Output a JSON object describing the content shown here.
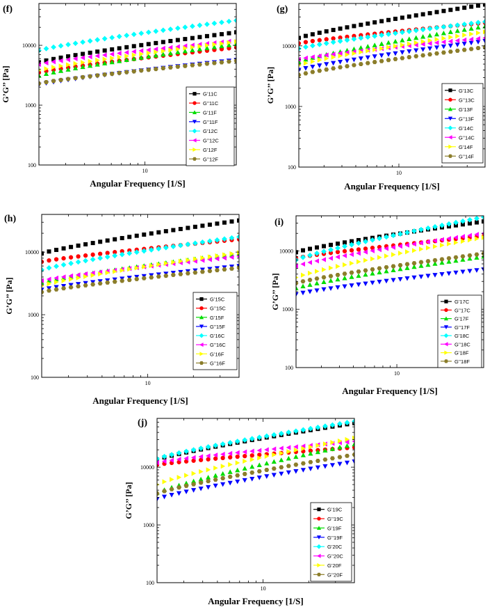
{
  "figure": {
    "panels": [
      "f",
      "g",
      "h",
      "i",
      "j"
    ]
  },
  "chart_data": [
    {
      "panel": "f",
      "label": "(f)",
      "type": "scatter",
      "xlabel": "Angular Frequency [1/S]",
      "ylabel": "G’G’’ [Pa]",
      "xscale": "log",
      "yscale": "log",
      "xlim": [
        2,
        40
      ],
      "ylim": [
        100,
        50000
      ],
      "xticks": [
        10
      ],
      "xtick_labels": [
        "10"
      ],
      "yticks": [
        100,
        1000,
        10000
      ],
      "ytick_labels": [
        "100",
        "1000",
        "10000"
      ],
      "legend_position": "bottom-right",
      "series": [
        {
          "name": "G’11C",
          "marker": "square",
          "color": "#000000",
          "start": 5200,
          "end": 16500
        },
        {
          "name": "G’’11C",
          "marker": "circle",
          "color": "#ff0000",
          "start": 3500,
          "end": 9200
        },
        {
          "name": "G’11F",
          "marker": "triangle-up",
          "color": "#00dd00",
          "start": 3100,
          "end": 10500
        },
        {
          "name": "G’’11F",
          "marker": "triangle-down",
          "color": "#0000ff",
          "start": 2200,
          "end": 5700
        },
        {
          "name": "G’12C",
          "marker": "diamond",
          "color": "#00ffff",
          "start": 8200,
          "end": 26000
        },
        {
          "name": "G’’12C",
          "marker": "triangle-left",
          "color": "#ff00ff",
          "start": 4800,
          "end": 12000
        },
        {
          "name": "G’12F",
          "marker": "triangle-right",
          "color": "#ffff00",
          "start": 3800,
          "end": 11500
        },
        {
          "name": "G’’12F",
          "marker": "hexagon",
          "color": "#8b7d2a",
          "start": 2300,
          "end": 5500
        }
      ]
    },
    {
      "panel": "g",
      "label": "(g)",
      "type": "scatter",
      "xlabel": "Angular Frequency [1/S]",
      "ylabel": "G’G’’ [Pa]",
      "xscale": "log",
      "yscale": "log",
      "xlim": [
        2,
        40
      ],
      "ylim": [
        100,
        50000
      ],
      "xticks": [
        10
      ],
      "xtick_labels": [
        "10"
      ],
      "yticks": [
        100,
        1000,
        10000
      ],
      "ytick_labels": [
        "100",
        "1000",
        "10000"
      ],
      "legend_position": "bottom-right",
      "series": [
        {
          "name": "G’13C",
          "marker": "square",
          "color": "#000000",
          "start": 13500,
          "end": 48000
        },
        {
          "name": "G’’13C",
          "marker": "circle",
          "color": "#ff0000",
          "start": 11000,
          "end": 24000
        },
        {
          "name": "G’13F",
          "marker": "triangle-up",
          "color": "#00dd00",
          "start": 5500,
          "end": 21000
        },
        {
          "name": "G’’13F",
          "marker": "triangle-down",
          "color": "#0000ff",
          "start": 4000,
          "end": 12000
        },
        {
          "name": "G’14C",
          "marker": "diamond",
          "color": "#00ffff",
          "start": 9000,
          "end": 25000
        },
        {
          "name": "G’’14C",
          "marker": "triangle-left",
          "color": "#ff00ff",
          "start": 6000,
          "end": 13500
        },
        {
          "name": "G’14F",
          "marker": "triangle-right",
          "color": "#ffff00",
          "start": 4800,
          "end": 17000
        },
        {
          "name": "G’’14F",
          "marker": "hexagon",
          "color": "#8b7d2a",
          "start": 3300,
          "end": 9500
        }
      ]
    },
    {
      "panel": "h",
      "label": "(h)",
      "type": "scatter",
      "xlabel": "Angular Frequency [1/S]",
      "ylabel": "G’G’’ [Pa]",
      "xscale": "log",
      "yscale": "log",
      "xlim": [
        2,
        40
      ],
      "ylim": [
        100,
        40000
      ],
      "xticks": [
        10
      ],
      "xtick_labels": [
        "10"
      ],
      "yticks": [
        100,
        1000,
        10000
      ],
      "ytick_labels": [
        "100",
        "1000",
        "10000"
      ],
      "legend_position": "bottom-right",
      "series": [
        {
          "name": "G’15C",
          "marker": "square",
          "color": "#000000",
          "start": 9500,
          "end": 32000
        },
        {
          "name": "G’’15C",
          "marker": "circle",
          "color": "#ff0000",
          "start": 7000,
          "end": 16000
        },
        {
          "name": "G’15F",
          "marker": "triangle-up",
          "color": "#00dd00",
          "start": 3300,
          "end": 9500
        },
        {
          "name": "G’’15F",
          "marker": "triangle-down",
          "color": "#0000ff",
          "start": 2500,
          "end": 6000
        },
        {
          "name": "G’16C",
          "marker": "diamond",
          "color": "#00ffff",
          "start": 5200,
          "end": 17500
        },
        {
          "name": "G’’16C",
          "marker": "triangle-left",
          "color": "#ff00ff",
          "start": 3500,
          "end": 8500
        },
        {
          "name": "G’16F",
          "marker": "triangle-right",
          "color": "#ffff00",
          "start": 2900,
          "end": 9800
        },
        {
          "name": "G’’16F",
          "marker": "hexagon",
          "color": "#8b7d2a",
          "start": 2300,
          "end": 5600
        }
      ]
    },
    {
      "panel": "i",
      "label": "(i)",
      "type": "scatter",
      "xlabel": "Angular Frequency [1/S]",
      "ylabel": "G’G’’ [Pa]",
      "xscale": "log",
      "yscale": "log",
      "xlim": [
        2,
        40
      ],
      "ylim": [
        100,
        40000
      ],
      "xticks": [
        10
      ],
      "xtick_labels": [
        "10"
      ],
      "yticks": [
        100,
        1000,
        10000
      ],
      "ytick_labels": [
        "100",
        "1000",
        "10000"
      ],
      "legend_position": "bottom-right",
      "series": [
        {
          "name": "G’17C",
          "marker": "square",
          "color": "#000000",
          "start": 9500,
          "end": 32000
        },
        {
          "name": "G’’17C",
          "marker": "circle",
          "color": "#ff0000",
          "start": 7500,
          "end": 18000
        },
        {
          "name": "G’17F",
          "marker": "triangle-up",
          "color": "#00dd00",
          "start": 2300,
          "end": 8000
        },
        {
          "name": "G’’17F",
          "marker": "triangle-down",
          "color": "#0000ff",
          "start": 1800,
          "end": 4800
        },
        {
          "name": "G’18C",
          "marker": "diamond",
          "color": "#00ffff",
          "start": 7000,
          "end": 38000
        },
        {
          "name": "G’’18C",
          "marker": "triangle-left",
          "color": "#ff00ff",
          "start": 5500,
          "end": 20000
        },
        {
          "name": "G’18F",
          "marker": "triangle-right",
          "color": "#ffff00",
          "start": 3500,
          "end": 17000
        },
        {
          "name": "G’’18F",
          "marker": "hexagon",
          "color": "#8b7d2a",
          "start": 2800,
          "end": 9000
        }
      ]
    },
    {
      "panel": "j",
      "label": "(j)",
      "type": "scatter",
      "xlabel": "Angular Frequency [1/S]",
      "ylabel": "G’G’’ [Pa]",
      "xscale": "log",
      "yscale": "log",
      "xlim": [
        2,
        40
      ],
      "ylim": [
        100,
        70000
      ],
      "xticks": [
        10
      ],
      "xtick_labels": [
        "10"
      ],
      "yticks": [
        100,
        1000,
        10000
      ],
      "ytick_labels": [
        "100",
        "1000",
        "10000"
      ],
      "legend_position": "bottom-right",
      "series": [
        {
          "name": "G’19C",
          "marker": "square",
          "color": "#000000",
          "start": 13500,
          "end": 58000
        },
        {
          "name": "G’’19C",
          "marker": "circle",
          "color": "#ff0000",
          "start": 11000,
          "end": 22000
        },
        {
          "name": "G’19F",
          "marker": "triangle-up",
          "color": "#00dd00",
          "start": 3600,
          "end": 25000
        },
        {
          "name": "G’’19F",
          "marker": "triangle-down",
          "color": "#0000ff",
          "start": 2800,
          "end": 12500
        },
        {
          "name": "G’20C",
          "marker": "diamond",
          "color": "#00ffff",
          "start": 14000,
          "end": 62000
        },
        {
          "name": "G’’20C",
          "marker": "triangle-left",
          "color": "#ff00ff",
          "start": 12000,
          "end": 28000
        },
        {
          "name": "G’20F",
          "marker": "triangle-right",
          "color": "#ffff00",
          "start": 5000,
          "end": 32000
        },
        {
          "name": "G’’20F",
          "marker": "hexagon",
          "color": "#8b7d2a",
          "start": 3500,
          "end": 16500
        }
      ]
    }
  ]
}
